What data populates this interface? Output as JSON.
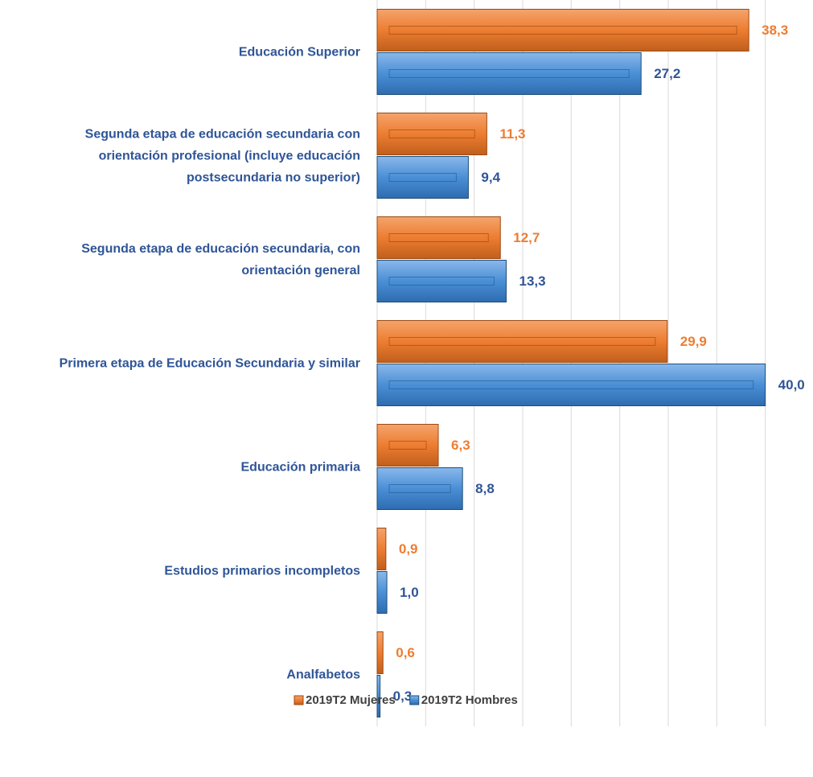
{
  "chart_data": {
    "type": "hbar",
    "categories": [
      "Educación Superior",
      "Segunda etapa de educación secundaria con\norientación profesional (incluye educación\npostsecundaria no superior)",
      "Segunda etapa de educación secundaria, con\norientación general",
      "Primera etapa de Educación Secundaria y similar",
      "Educación primaria",
      "Estudios primarios incompletos",
      "Analfabetos"
    ],
    "series": [
      {
        "name": "2019T2 Mujeres",
        "color": "#ed7d31",
        "label_color": "#ed7d31",
        "values": [
          38.3,
          11.3,
          12.7,
          29.9,
          6.3,
          0.9,
          0.6
        ],
        "value_labels": [
          "38,3",
          "11,3",
          "12,7",
          "29,9",
          "6,3",
          "0,9",
          "0,6"
        ]
      },
      {
        "name": "2019T2 Hombres",
        "color": "#4a8fd6",
        "label_color": "#2f5597",
        "values": [
          27.2,
          9.4,
          13.3,
          40.0,
          8.8,
          1.0,
          0.3
        ],
        "value_labels": [
          "27,2",
          "9,4",
          "13,3",
          "40,0",
          "8,8",
          "1,0",
          "0,3"
        ]
      }
    ],
    "xlim": [
      0,
      45
    ],
    "xticks": [
      0,
      5,
      10,
      15,
      20,
      25,
      30,
      35,
      40,
      45
    ],
    "grid": true,
    "legend": "bottom"
  }
}
